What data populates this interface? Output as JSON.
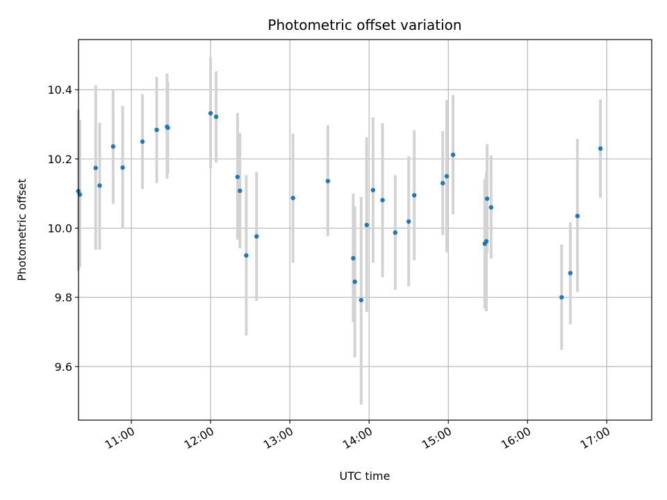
{
  "chart_data": {
    "type": "scatter",
    "title": "Photometric offset variation",
    "xlabel": "UTC time",
    "ylabel": "Photometric offset",
    "xlim": [
      10.333,
      17.567
    ],
    "ylim": [
      9.445,
      10.545
    ],
    "x_ticks": [
      {
        "value": 11,
        "label": "11:00"
      },
      {
        "value": 12,
        "label": "12:00"
      },
      {
        "value": 13,
        "label": "13:00"
      },
      {
        "value": 14,
        "label": "14:00"
      },
      {
        "value": 15,
        "label": "15:00"
      },
      {
        "value": 16,
        "label": "16:00"
      },
      {
        "value": 17,
        "label": "17:00"
      }
    ],
    "y_ticks": [
      {
        "value": 9.6,
        "label": "9.6"
      },
      {
        "value": 9.8,
        "label": "9.8"
      },
      {
        "value": 10.0,
        "label": "10.0"
      },
      {
        "value": 10.2,
        "label": "10.2"
      },
      {
        "value": 10.4,
        "label": "10.4"
      }
    ],
    "grid": true,
    "colors": {
      "point": "#1f77b4",
      "errorbar": "#d3d3d3",
      "grid": "#b0b0b0"
    },
    "series": [
      {
        "name": "offset",
        "points": [
          {
            "x": 10.33,
            "y": 10.107,
            "err_low": 9.877,
            "err_high": 10.343
          },
          {
            "x": 10.35,
            "y": 10.097,
            "err_low": 9.887,
            "err_high": 10.313
          },
          {
            "x": 10.55,
            "y": 10.174,
            "err_low": 9.937,
            "err_high": 10.413
          },
          {
            "x": 10.6,
            "y": 10.123,
            "err_low": 9.938,
            "err_high": 10.305
          },
          {
            "x": 10.77,
            "y": 10.236,
            "err_low": 10.07,
            "err_high": 10.4
          },
          {
            "x": 10.89,
            "y": 10.175,
            "err_low": 10.0,
            "err_high": 10.353
          },
          {
            "x": 11.14,
            "y": 10.25,
            "err_low": 10.113,
            "err_high": 10.387
          },
          {
            "x": 11.32,
            "y": 10.284,
            "err_low": 10.13,
            "err_high": 10.437
          },
          {
            "x": 11.45,
            "y": 10.293,
            "err_low": 10.143,
            "err_high": 10.447
          },
          {
            "x": 11.46,
            "y": 10.29,
            "err_low": 10.157,
            "err_high": 10.423
          },
          {
            "x": 12.0,
            "y": 10.332,
            "err_low": 10.173,
            "err_high": 10.493
          },
          {
            "x": 12.07,
            "y": 10.322,
            "err_low": 10.19,
            "err_high": 10.453
          },
          {
            "x": 12.34,
            "y": 10.148,
            "err_low": 9.967,
            "err_high": 10.333
          },
          {
            "x": 12.37,
            "y": 10.108,
            "err_low": 9.942,
            "err_high": 10.275
          },
          {
            "x": 12.45,
            "y": 9.921,
            "err_low": 9.69,
            "err_high": 10.153
          },
          {
            "x": 12.58,
            "y": 9.976,
            "err_low": 9.79,
            "err_high": 10.162
          },
          {
            "x": 13.04,
            "y": 10.087,
            "err_low": 9.9,
            "err_high": 10.273
          },
          {
            "x": 13.48,
            "y": 10.136,
            "err_low": 9.977,
            "err_high": 10.297
          },
          {
            "x": 13.8,
            "y": 9.913,
            "err_low": 9.728,
            "err_high": 10.1
          },
          {
            "x": 13.82,
            "y": 9.845,
            "err_low": 9.627,
            "err_high": 10.063
          },
          {
            "x": 13.9,
            "y": 9.792,
            "err_low": 9.49,
            "err_high": 10.09
          },
          {
            "x": 13.97,
            "y": 10.009,
            "err_low": 9.758,
            "err_high": 10.262
          },
          {
            "x": 14.05,
            "y": 10.11,
            "err_low": 9.9,
            "err_high": 10.32
          },
          {
            "x": 14.17,
            "y": 10.081,
            "err_low": 9.858,
            "err_high": 10.303
          },
          {
            "x": 14.33,
            "y": 9.987,
            "err_low": 9.822,
            "err_high": 10.153
          },
          {
            "x": 14.5,
            "y": 10.019,
            "err_low": 9.832,
            "err_high": 10.208
          },
          {
            "x": 14.57,
            "y": 10.095,
            "err_low": 9.907,
            "err_high": 10.283
          },
          {
            "x": 14.93,
            "y": 10.13,
            "err_low": 9.98,
            "err_high": 10.28
          },
          {
            "x": 14.98,
            "y": 10.15,
            "err_low": 9.93,
            "err_high": 10.37
          },
          {
            "x": 15.06,
            "y": 10.212,
            "err_low": 10.04,
            "err_high": 10.385
          },
          {
            "x": 15.46,
            "y": 9.955,
            "err_low": 9.768,
            "err_high": 10.142
          },
          {
            "x": 15.48,
            "y": 9.962,
            "err_low": 9.76,
            "err_high": 10.163
          },
          {
            "x": 15.49,
            "y": 10.085,
            "err_low": 9.928,
            "err_high": 10.243
          },
          {
            "x": 15.54,
            "y": 10.06,
            "err_low": 9.912,
            "err_high": 10.21
          },
          {
            "x": 16.43,
            "y": 9.8,
            "err_low": 9.648,
            "err_high": 9.953
          },
          {
            "x": 16.54,
            "y": 9.87,
            "err_low": 9.722,
            "err_high": 10.017
          },
          {
            "x": 16.63,
            "y": 10.035,
            "err_low": 9.815,
            "err_high": 10.258
          },
          {
            "x": 16.92,
            "y": 10.23,
            "err_low": 10.088,
            "err_high": 10.372
          }
        ]
      }
    ]
  }
}
